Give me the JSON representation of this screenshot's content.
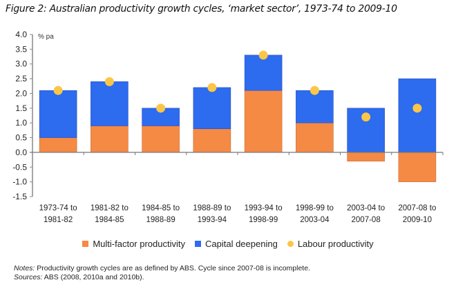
{
  "title": "Figure 2: Australian productivity growth cycles, ‘market sector’, 1973-74 to 2009-10",
  "chart_data": {
    "type": "bar",
    "stacked": true,
    "title": "Figure 2: Australian productivity growth cycles, ‘market sector’, 1973-74 to 2009-10",
    "ylabel": "% pa",
    "xlabel": "",
    "ylim": [
      -1.5,
      4.0
    ],
    "yticks": [
      "4.0",
      "3.5",
      "3.0",
      "2.5",
      "2.0",
      "1.5",
      "1.0",
      "0.5",
      "0.0",
      "-0.5",
      "-1.0",
      "-1.5"
    ],
    "ytick_values": [
      4.0,
      3.5,
      3.0,
      2.5,
      2.0,
      1.5,
      1.0,
      0.5,
      0.0,
      -0.5,
      -1.0,
      -1.5
    ],
    "grid": false,
    "legend_position": "bottom",
    "categories": [
      [
        "1973-74 to",
        "1981-82"
      ],
      [
        "1981-82 to",
        "1984-85"
      ],
      [
        "1984-85 to",
        "1988-89"
      ],
      [
        "1988-89 to",
        "1993-94"
      ],
      [
        "1993-94 to",
        "1998-99"
      ],
      [
        "1998-99 to",
        "2003-04"
      ],
      [
        "2003-04 to",
        "2007-08"
      ],
      [
        "2007-08 to",
        "2009-10"
      ]
    ],
    "series": [
      {
        "name": "Multi-factor productivity",
        "kind": "bar",
        "color": "#F58A45",
        "values": [
          0.5,
          0.9,
          0.9,
          0.8,
          2.1,
          1.0,
          -0.3,
          -1.0
        ]
      },
      {
        "name": "Capital deepening",
        "kind": "bar",
        "color": "#2D6BEF",
        "values": [
          1.6,
          1.5,
          0.6,
          1.4,
          1.2,
          1.1,
          1.5,
          2.5
        ]
      },
      {
        "name": "Labour productivity",
        "kind": "marker",
        "color": "#FBC647",
        "values": [
          2.1,
          2.4,
          1.5,
          2.2,
          3.3,
          2.1,
          1.2,
          1.5
        ]
      }
    ]
  },
  "legend": [
    {
      "label": "Multi-factor productivity",
      "color": "#F58A45",
      "shape": "square"
    },
    {
      "label": "Capital deepening",
      "color": "#2D6BEF",
      "shape": "square"
    },
    {
      "label": "Labour productivity",
      "color": "#FBC647",
      "shape": "circle"
    }
  ],
  "notes": {
    "notes_label": "Notes:",
    "notes_text": " Productivity growth cycles are as defined by ABS. Cycle since 2007-08 is incomplete.",
    "sources_label": "Sources:",
    "sources_text": " ABS (2008, 2010a and 2010b)."
  }
}
